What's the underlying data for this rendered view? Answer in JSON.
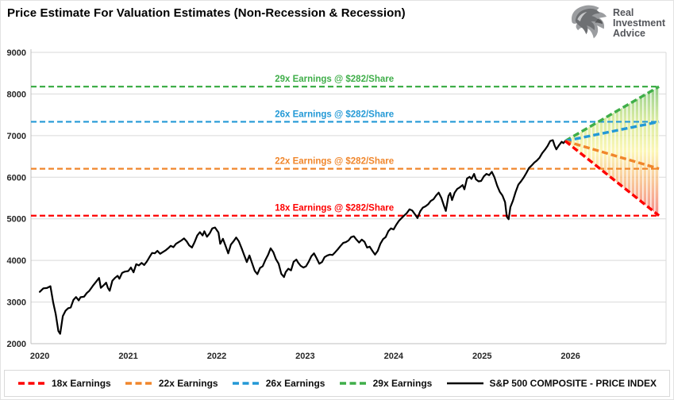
{
  "header": {
    "title": "Price Estimate For Valuation Estimates (Non-Recession & Recession)",
    "logo": {
      "icon": "eagle-icon",
      "lines": [
        "Real",
        "Investment",
        "Advice"
      ]
    }
  },
  "chart_data": {
    "type": "line",
    "title": "Price Estimate For Valuation Estimates (Non-Recession & Recession)",
    "xlabel": "",
    "ylabel": "",
    "xlim": [
      2019.9,
      2027.08
    ],
    "ylim": [
      2000,
      9000
    ],
    "x_ticks": [
      2020,
      2021,
      2022,
      2023,
      2024,
      2025,
      2026
    ],
    "y_ticks": [
      2000,
      3000,
      4000,
      5000,
      6000,
      7000,
      8000,
      9000
    ],
    "grid": "horizontal",
    "gridline_color": "#d9d9d9",
    "axis_color": "#bfbfbf",
    "label_x": 2023.33,
    "levels": [
      {
        "multiple": "29x",
        "label": "29x Earnings @ $282/Share",
        "value": 8178,
        "color": "#3fae49"
      },
      {
        "multiple": "26x",
        "label": "26x Earnings @ $282/Share",
        "value": 7332,
        "color": "#2399d6"
      },
      {
        "multiple": "22x",
        "label": "22x Earnings @ $282/Share",
        "value": 6204,
        "color": "#f0862b"
      },
      {
        "multiple": "18x",
        "label": "18x Earnings @ $282/Share",
        "value": 5076,
        "color": "#fe0000"
      }
    ],
    "projection_fan": {
      "apex": [
        2025.94,
        6870
      ],
      "end_x": 2027.0,
      "targets": [
        8178,
        7332,
        6204,
        5076
      ],
      "gradient": [
        "#6fbe63",
        "#c9e37e",
        "#fbf49b",
        "#f6af72",
        "#f2605e"
      ]
    },
    "series": [
      {
        "name": "S&P 500 COMPOSITE - PRICE INDEX",
        "color": "#000000",
        "points": [
          [
            2020.0,
            3245
          ],
          [
            2020.04,
            3330
          ],
          [
            2020.08,
            3338
          ],
          [
            2020.12,
            3380
          ],
          [
            2020.15,
            3000
          ],
          [
            2020.18,
            2710
          ],
          [
            2020.21,
            2305
          ],
          [
            2020.23,
            2237
          ],
          [
            2020.26,
            2660
          ],
          [
            2020.29,
            2790
          ],
          [
            2020.32,
            2850
          ],
          [
            2020.35,
            2870
          ],
          [
            2020.38,
            3050
          ],
          [
            2020.41,
            3120
          ],
          [
            2020.44,
            3040
          ],
          [
            2020.46,
            3115
          ],
          [
            2020.5,
            3130
          ],
          [
            2020.53,
            3215
          ],
          [
            2020.56,
            3270
          ],
          [
            2020.6,
            3390
          ],
          [
            2020.64,
            3500
          ],
          [
            2020.67,
            3580
          ],
          [
            2020.69,
            3340
          ],
          [
            2020.72,
            3400
          ],
          [
            2020.75,
            3465
          ],
          [
            2020.77,
            3340
          ],
          [
            2020.79,
            3270
          ],
          [
            2020.82,
            3510
          ],
          [
            2020.85,
            3580
          ],
          [
            2020.88,
            3630
          ],
          [
            2020.9,
            3560
          ],
          [
            2020.93,
            3700
          ],
          [
            2020.96,
            3730
          ],
          [
            2021.0,
            3745
          ],
          [
            2021.03,
            3830
          ],
          [
            2021.06,
            3715
          ],
          [
            2021.09,
            3910
          ],
          [
            2021.12,
            3880
          ],
          [
            2021.15,
            3940
          ],
          [
            2021.18,
            3890
          ],
          [
            2021.21,
            3975
          ],
          [
            2021.24,
            4080
          ],
          [
            2021.27,
            4180
          ],
          [
            2021.3,
            4170
          ],
          [
            2021.33,
            4230
          ],
          [
            2021.36,
            4160
          ],
          [
            2021.39,
            4200
          ],
          [
            2021.42,
            4240
          ],
          [
            2021.45,
            4290
          ],
          [
            2021.48,
            4350
          ],
          [
            2021.51,
            4320
          ],
          [
            2021.54,
            4400
          ],
          [
            2021.57,
            4440
          ],
          [
            2021.6,
            4480
          ],
          [
            2021.63,
            4530
          ],
          [
            2021.66,
            4460
          ],
          [
            2021.69,
            4360
          ],
          [
            2021.72,
            4310
          ],
          [
            2021.75,
            4440
          ],
          [
            2021.78,
            4600
          ],
          [
            2021.81,
            4680
          ],
          [
            2021.84,
            4600
          ],
          [
            2021.86,
            4700
          ],
          [
            2021.89,
            4570
          ],
          [
            2021.92,
            4650
          ],
          [
            2021.95,
            4770
          ],
          [
            2021.98,
            4793
          ],
          [
            2022.02,
            4670
          ],
          [
            2022.04,
            4400
          ],
          [
            2022.07,
            4520
          ],
          [
            2022.1,
            4350
          ],
          [
            2022.13,
            4170
          ],
          [
            2022.16,
            4380
          ],
          [
            2022.19,
            4460
          ],
          [
            2022.22,
            4550
          ],
          [
            2022.25,
            4460
          ],
          [
            2022.28,
            4300
          ],
          [
            2022.31,
            4130
          ],
          [
            2022.34,
            3960
          ],
          [
            2022.37,
            4120
          ],
          [
            2022.4,
            3930
          ],
          [
            2022.43,
            3750
          ],
          [
            2022.46,
            3670
          ],
          [
            2022.49,
            3820
          ],
          [
            2022.52,
            3860
          ],
          [
            2022.55,
            4010
          ],
          [
            2022.58,
            4130
          ],
          [
            2022.61,
            4290
          ],
          [
            2022.64,
            4200
          ],
          [
            2022.67,
            4030
          ],
          [
            2022.7,
            3920
          ],
          [
            2022.73,
            3680
          ],
          [
            2022.76,
            3600
          ],
          [
            2022.78,
            3720
          ],
          [
            2022.81,
            3800
          ],
          [
            2022.84,
            3760
          ],
          [
            2022.87,
            3970
          ],
          [
            2022.9,
            4020
          ],
          [
            2022.92,
            3950
          ],
          [
            2022.95,
            3870
          ],
          [
            2022.98,
            3830
          ],
          [
            2023.01,
            3860
          ],
          [
            2023.04,
            3970
          ],
          [
            2023.07,
            4100
          ],
          [
            2023.1,
            4170
          ],
          [
            2023.13,
            4050
          ],
          [
            2023.16,
            3920
          ],
          [
            2023.19,
            3960
          ],
          [
            2023.22,
            4080
          ],
          [
            2023.25,
            4120
          ],
          [
            2023.28,
            4140
          ],
          [
            2023.31,
            4130
          ],
          [
            2023.34,
            4200
          ],
          [
            2023.37,
            4270
          ],
          [
            2023.4,
            4350
          ],
          [
            2023.43,
            4420
          ],
          [
            2023.46,
            4440
          ],
          [
            2023.49,
            4480
          ],
          [
            2023.52,
            4560
          ],
          [
            2023.55,
            4580
          ],
          [
            2023.58,
            4500
          ],
          [
            2023.61,
            4430
          ],
          [
            2023.64,
            4500
          ],
          [
            2023.67,
            4450
          ],
          [
            2023.7,
            4310
          ],
          [
            2023.73,
            4330
          ],
          [
            2023.76,
            4230
          ],
          [
            2023.79,
            4140
          ],
          [
            2023.82,
            4230
          ],
          [
            2023.85,
            4400
          ],
          [
            2023.88,
            4510
          ],
          [
            2023.91,
            4560
          ],
          [
            2023.94,
            4700
          ],
          [
            2023.97,
            4770
          ],
          [
            2024.0,
            4745
          ],
          [
            2024.03,
            4860
          ],
          [
            2024.06,
            4950
          ],
          [
            2024.09,
            5020
          ],
          [
            2024.12,
            5080
          ],
          [
            2024.15,
            5140
          ],
          [
            2024.18,
            5230
          ],
          [
            2024.21,
            5200
          ],
          [
            2024.24,
            5110
          ],
          [
            2024.27,
            5020
          ],
          [
            2024.3,
            5180
          ],
          [
            2024.33,
            5270
          ],
          [
            2024.36,
            5300
          ],
          [
            2024.39,
            5350
          ],
          [
            2024.42,
            5430
          ],
          [
            2024.45,
            5470
          ],
          [
            2024.48,
            5560
          ],
          [
            2024.51,
            5630
          ],
          [
            2024.54,
            5500
          ],
          [
            2024.57,
            5310
          ],
          [
            2024.59,
            5190
          ],
          [
            2024.62,
            5550
          ],
          [
            2024.64,
            5620
          ],
          [
            2024.66,
            5450
          ],
          [
            2024.69,
            5630
          ],
          [
            2024.72,
            5720
          ],
          [
            2024.75,
            5760
          ],
          [
            2024.78,
            5810
          ],
          [
            2024.8,
            5710
          ],
          [
            2024.83,
            5970
          ],
          [
            2024.86,
            6010
          ],
          [
            2024.88,
            5960
          ],
          [
            2024.91,
            6080
          ],
          [
            2024.93,
            5950
          ],
          [
            2024.96,
            5900
          ],
          [
            2024.99,
            5910
          ],
          [
            2025.02,
            6020
          ],
          [
            2025.05,
            6080
          ],
          [
            2025.08,
            6050
          ],
          [
            2025.11,
            6130
          ],
          [
            2025.14,
            6000
          ],
          [
            2025.17,
            5800
          ],
          [
            2025.2,
            5650
          ],
          [
            2025.23,
            5560
          ],
          [
            2025.26,
            5400
          ],
          [
            2025.28,
            5050
          ],
          [
            2025.3,
            4990
          ],
          [
            2025.32,
            5280
          ],
          [
            2025.35,
            5440
          ],
          [
            2025.38,
            5650
          ],
          [
            2025.41,
            5820
          ],
          [
            2025.44,
            5900
          ],
          [
            2025.47,
            5990
          ],
          [
            2025.5,
            6100
          ],
          [
            2025.53,
            6220
          ],
          [
            2025.56,
            6280
          ],
          [
            2025.59,
            6350
          ],
          [
            2025.62,
            6400
          ],
          [
            2025.65,
            6470
          ],
          [
            2025.68,
            6580
          ],
          [
            2025.71,
            6660
          ],
          [
            2025.74,
            6750
          ],
          [
            2025.77,
            6870
          ],
          [
            2025.8,
            6890
          ],
          [
            2025.82,
            6760
          ],
          [
            2025.84,
            6670
          ],
          [
            2025.87,
            6770
          ],
          [
            2025.9,
            6850
          ],
          [
            2025.92,
            6820
          ],
          [
            2025.94,
            6870
          ]
        ]
      }
    ],
    "legend": [
      {
        "label": "18x Earnings",
        "color": "#fe0000",
        "style": "dashed"
      },
      {
        "label": "22x Earnings",
        "color": "#f0862b",
        "style": "dashed"
      },
      {
        "label": "26x Earnings",
        "color": "#2399d6",
        "style": "dashed"
      },
      {
        "label": "29x Earnings",
        "color": "#3fae49",
        "style": "dashed"
      },
      {
        "label": "S&P 500 COMPOSITE - PRICE INDEX",
        "color": "#000000",
        "style": "solid"
      }
    ]
  }
}
